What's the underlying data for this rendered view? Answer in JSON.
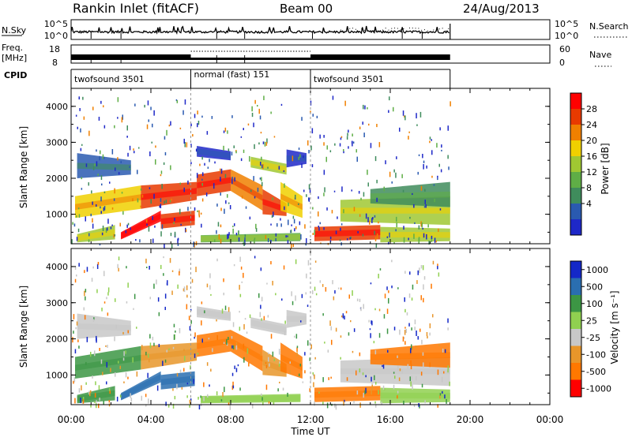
{
  "header": {
    "station": "Rankin Inlet (fitACF)",
    "beam": "Beam 00",
    "date": "24/Aug/2013"
  },
  "panel_labels": {
    "nsky": "N.Sky",
    "nsearch": "N.Search",
    "freq_line1": "Freq.",
    "freq_line2": "[MHz]",
    "nave": "Nave",
    "cpid": "CPID"
  },
  "nsky_ticks": [
    "10^5",
    "10^0"
  ],
  "freq_ticks": [
    "18",
    "8"
  ],
  "nave_ticks": [
    "60",
    "0"
  ],
  "nsearch_ticks": [
    "10^5",
    "10^0"
  ],
  "cpid_segments": [
    {
      "label": "twofsound 3501",
      "start": 0,
      "end": 6
    },
    {
      "label": "normal (fast) 151",
      "start": 6,
      "end": 12
    },
    {
      "label": "twofsound 3501",
      "start": 12,
      "end": 19
    }
  ],
  "colors": {
    "power": [
      "#1e28c8",
      "#2a5ab0",
      "#3f8c5c",
      "#5fae46",
      "#a0c832",
      "#f0d000",
      "#f08000",
      "#e83a00",
      "#ff0000"
    ],
    "velocity": [
      "#ff0000",
      "#ff7800",
      "#e8962a",
      "#c8c8c8",
      "#90d050",
      "#3c9644",
      "#2a6eb0",
      "#1428c8"
    ]
  },
  "chart_data": [
    {
      "type": "heatmap",
      "name": "power",
      "x_range": [
        0,
        24
      ],
      "ylabel": "Slant Range [km]",
      "yticks": [
        1000,
        2000,
        3000,
        4000
      ],
      "ylim": [
        180,
        4500
      ],
      "colorbar_label": "Power [dB]",
      "colorbar_ticks": [
        "28",
        "24",
        "20",
        "16",
        "12",
        "8",
        "4"
      ],
      "data_coverage_hours": [
        0,
        19
      ]
    },
    {
      "type": "heatmap",
      "name": "velocity",
      "x_range": [
        0,
        24
      ],
      "ylabel": "Slant Range [km]",
      "yticks": [
        1000,
        2000,
        3000,
        4000
      ],
      "ylim": [
        180,
        4500
      ],
      "colorbar_label": "Velocity [m s⁻¹]",
      "colorbar_ticks": [
        "1000",
        "500",
        "100",
        "25",
        "-25",
        "-100",
        "-500",
        "-1000"
      ],
      "data_coverage_hours": [
        0,
        19
      ]
    }
  ],
  "x_axis": {
    "label": "Time UT",
    "ticks": [
      "00:00",
      "04:00",
      "08:00",
      "12:00",
      "16:00",
      "20:00",
      "00:00"
    ]
  }
}
